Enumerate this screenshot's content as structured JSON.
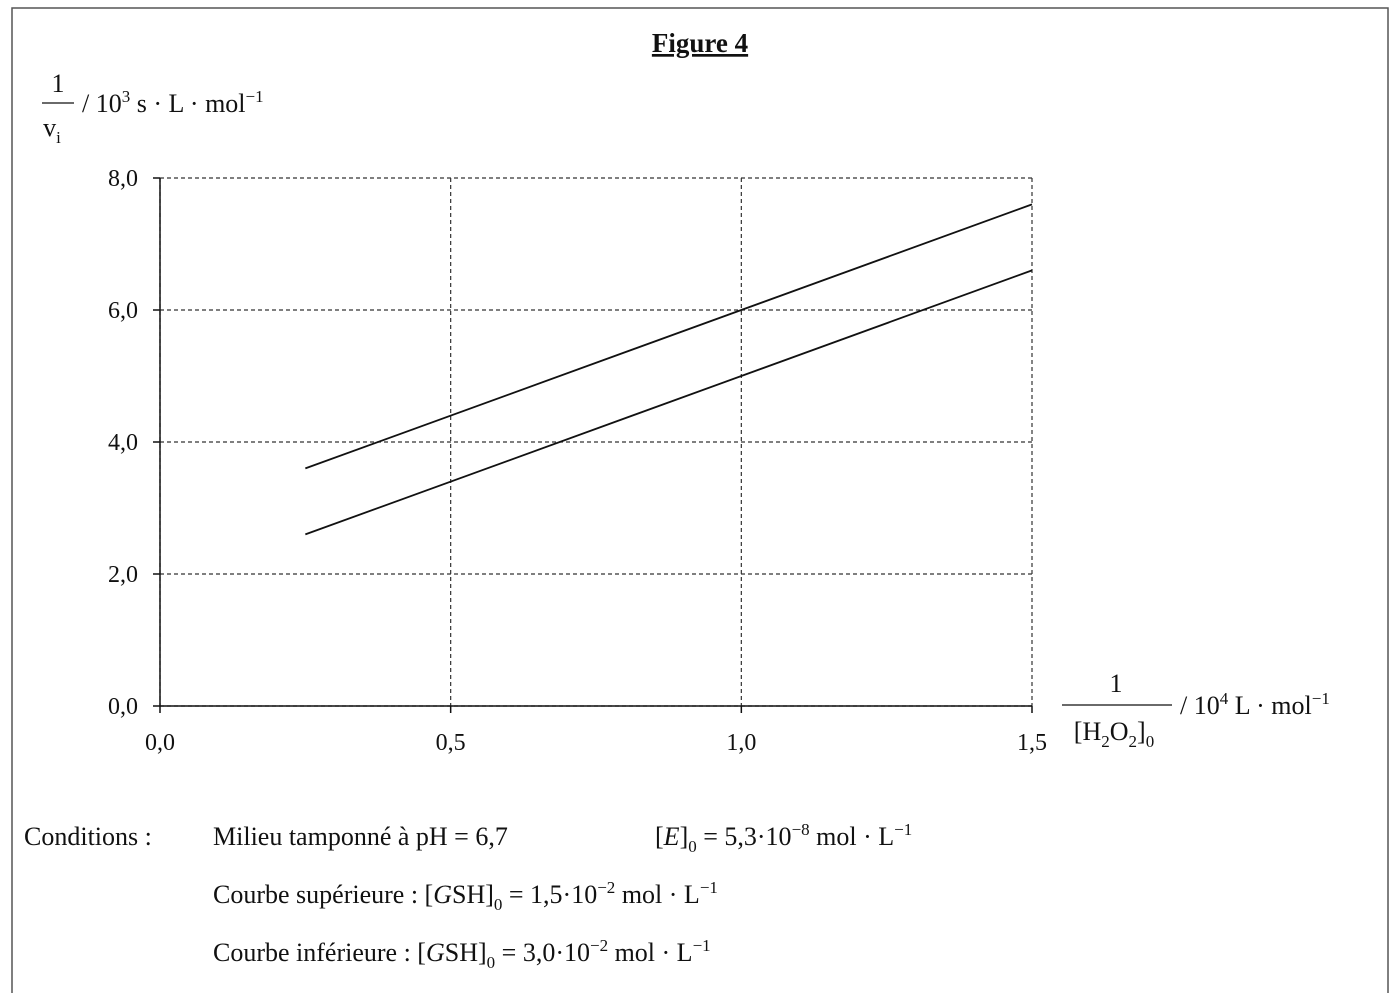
{
  "chart_data": {
    "type": "line",
    "title": "Figure 4",
    "y_label": {
      "num": "1",
      "den": [
        {
          "t": "v"
        },
        {
          "sub": "i"
        }
      ],
      "unit": [
        {
          "t": "/ 10"
        },
        {
          "sup": "3"
        },
        {
          "t": " s · L · mol"
        },
        {
          "sup": "−1"
        }
      ]
    },
    "x_label": {
      "num": "1",
      "den": [
        {
          "t": "[H"
        },
        {
          "sub": "2"
        },
        {
          "t": "O"
        },
        {
          "sub": "2"
        },
        {
          "t": "]"
        },
        {
          "sub": "0"
        }
      ],
      "unit": [
        {
          "t": "/ 10"
        },
        {
          "sup": "4"
        },
        {
          "t": " L · mol"
        },
        {
          "sup": "−1"
        }
      ]
    },
    "x": [
      0.25,
      1.5
    ],
    "series": [
      {
        "color": "#111111",
        "values": [
          3.6,
          7.6
        ]
      },
      {
        "color": "#111111",
        "values": [
          2.6,
          6.6
        ]
      }
    ],
    "xlim": [
      0,
      1.5
    ],
    "ylim": [
      0,
      8
    ],
    "xticks": [
      {
        "value": 0,
        "label": "0,0"
      },
      {
        "value": 0.5,
        "label": "0,5"
      },
      {
        "value": 1,
        "label": "1,0"
      },
      {
        "value": 1.5,
        "label": "1,5"
      }
    ],
    "yticks": [
      {
        "value": 0,
        "label": "0,0"
      },
      {
        "value": 2,
        "label": "2,0"
      },
      {
        "value": 4,
        "label": "4,0"
      },
      {
        "value": 6,
        "label": "6,0"
      },
      {
        "value": 8,
        "label": "8,0"
      }
    ],
    "grid": true,
    "conditions": {
      "label": "Conditions :",
      "lines": [
        [
          [
            {
              "t": "Milieu tamponné à  pH = 6,7"
            }
          ],
          [
            {
              "t": "["
            },
            {
              "i": "E"
            },
            {
              "t": "]"
            },
            {
              "sub": "0"
            },
            {
              "t": " = 5,3·10"
            },
            {
              "sup": "−8"
            },
            {
              "t": "  mol · L"
            },
            {
              "sup": "−1"
            }
          ]
        ],
        [
          [
            {
              "t": "Courbe supérieure : ["
            },
            {
              "i": "G"
            },
            {
              "t": "SH]"
            },
            {
              "sub": "0"
            },
            {
              "t": " = 1,5·10"
            },
            {
              "sup": "−2"
            },
            {
              "t": "  mol · L"
            },
            {
              "sup": "−1"
            }
          ]
        ],
        [
          [
            {
              "t": "Courbe inférieure : ["
            },
            {
              "i": "G"
            },
            {
              "t": "SH]"
            },
            {
              "sub": "0"
            },
            {
              "t": " = 3,0·10"
            },
            {
              "sup": "−2"
            },
            {
              "t": "  mol · L"
            },
            {
              "sup": "−1"
            }
          ]
        ]
      ]
    }
  }
}
